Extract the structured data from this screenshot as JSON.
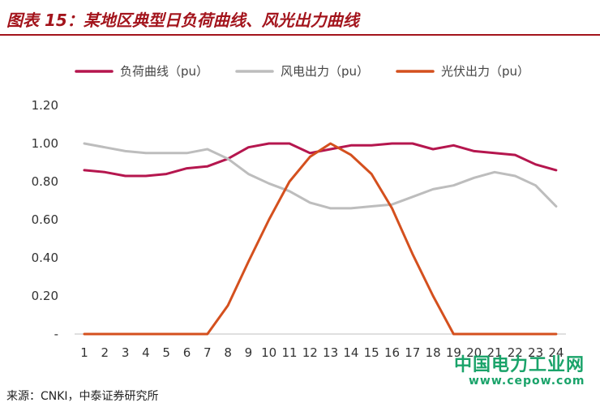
{
  "title": "图表 15：某地区典型日负荷曲线、风光出力曲线",
  "source": "来源：CNKI，中泰证券研究所",
  "watermark": {
    "site_name": "中国电力工业网",
    "url": "www.cepow.com"
  },
  "colors": {
    "title": "#a3141c",
    "load": "#b5164e",
    "wind": "#bdbdbd",
    "solar": "#d4501e",
    "watermark": "#1aa36a"
  },
  "chart_data": {
    "type": "line",
    "title": "",
    "xlabel": "",
    "ylabel": "",
    "x": [
      1,
      2,
      3,
      4,
      5,
      6,
      7,
      8,
      9,
      10,
      11,
      12,
      13,
      14,
      15,
      16,
      17,
      18,
      19,
      20,
      21,
      22,
      23,
      24
    ],
    "y_ticks": [
      "-",
      "0.20",
      "0.40",
      "0.60",
      "0.80",
      "1.00",
      "1.20"
    ],
    "ylim": [
      0,
      1.2
    ],
    "grid": false,
    "legend_position": "top",
    "series": [
      {
        "name": "负荷曲线（pu）",
        "color": "#b5164e",
        "values": [
          0.86,
          0.85,
          0.83,
          0.83,
          0.84,
          0.87,
          0.88,
          0.92,
          0.98,
          1.0,
          1.0,
          0.95,
          0.97,
          0.99,
          0.99,
          1.0,
          1.0,
          0.97,
          0.99,
          0.96,
          0.95,
          0.94,
          0.89,
          0.86
        ]
      },
      {
        "name": "风电出力（pu）",
        "color": "#bdbdbd",
        "values": [
          1.0,
          0.98,
          0.96,
          0.95,
          0.95,
          0.95,
          0.97,
          0.92,
          0.84,
          0.79,
          0.75,
          0.69,
          0.66,
          0.66,
          0.67,
          0.68,
          0.72,
          0.76,
          0.78,
          0.82,
          0.85,
          0.83,
          0.78,
          0.67
        ]
      },
      {
        "name": "光伏出力（pu）",
        "color": "#d4501e",
        "values": [
          0,
          0,
          0,
          0,
          0,
          0,
          0,
          0.15,
          0.38,
          0.6,
          0.8,
          0.93,
          1.0,
          0.94,
          0.84,
          0.66,
          0.42,
          0.2,
          0,
          0,
          0,
          0,
          0,
          0
        ]
      }
    ]
  }
}
